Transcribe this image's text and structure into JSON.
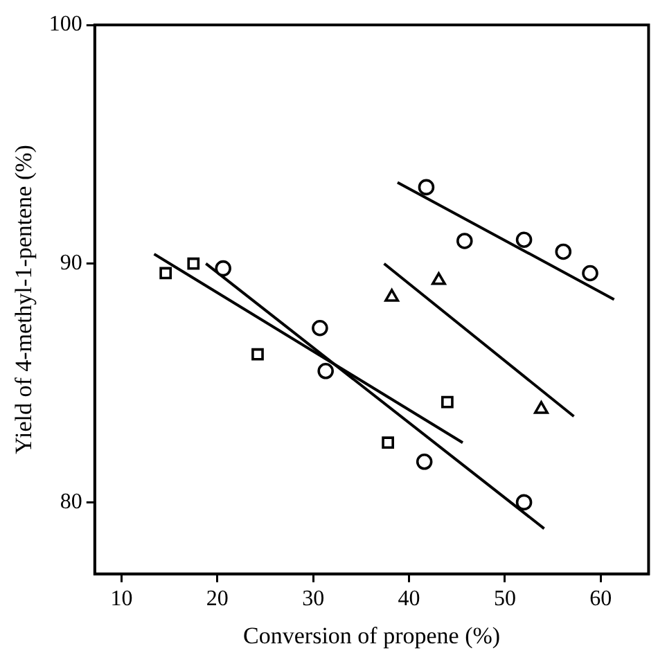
{
  "chart_data": {
    "type": "scatter",
    "xlabel": "Conversion of propene (%)",
    "ylabel": "Yield of 4-methyl-1-pentene (%)",
    "xlim": [
      7.2,
      65
    ],
    "xticks": [
      10,
      20,
      30,
      40,
      50,
      60
    ],
    "ylim": [
      77,
      100
    ],
    "yticks": [
      80,
      90,
      100
    ],
    "grid": false,
    "legend": false,
    "series": [
      {
        "marker": "square",
        "color": "#000000",
        "x": [
          14.6,
          17.5,
          24.2,
          37.8,
          44.0
        ],
        "values": [
          89.6,
          90.0,
          86.2,
          82.5,
          84.2
        ]
      },
      {
        "marker": "circle",
        "color": "#000000",
        "x": [
          20.6,
          30.7,
          31.3,
          41.6,
          52.0
        ],
        "values": [
          89.8,
          87.3,
          85.5,
          81.7,
          80.0
        ]
      },
      {
        "marker": "triangle",
        "color": "#000000",
        "x": [
          38.2,
          43.1,
          53.8
        ],
        "values": [
          88.6,
          89.3,
          83.9
        ]
      },
      {
        "marker": "circle",
        "color": "#000000",
        "x": [
          41.8,
          45.8,
          52.0,
          56.1,
          58.9
        ],
        "values": [
          93.2,
          90.95,
          91.0,
          90.5,
          89.6
        ]
      },
      {
        "type": "line",
        "marker": "none",
        "color": "#000000",
        "x": [
          13.4,
          45.6
        ],
        "values": [
          90.4,
          82.5
        ]
      },
      {
        "type": "line",
        "marker": "none",
        "color": "#000000",
        "x": [
          18.8,
          54.1
        ],
        "values": [
          90.0,
          78.9
        ]
      },
      {
        "type": "line",
        "marker": "none",
        "color": "#000000",
        "x": [
          37.4,
          57.2
        ],
        "values": [
          90.0,
          83.6
        ]
      },
      {
        "type": "line",
        "marker": "none",
        "color": "#000000",
        "x": [
          38.8,
          61.4
        ],
        "values": [
          93.4,
          88.5
        ]
      }
    ]
  }
}
